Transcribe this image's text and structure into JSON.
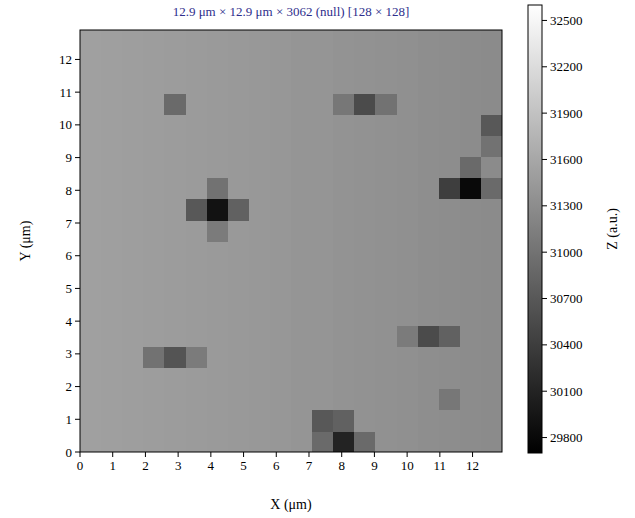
{
  "chart_data": {
    "type": "heatmap",
    "title": "12.9 μm × 12.9 μm × 3062 (null) [128 × 128]",
    "x_label": "X (μm)",
    "y_label": "Y (μm)",
    "z_label": "Z (a.u.)",
    "xlim": [
      0,
      12.9
    ],
    "ylim": [
      0,
      12.9
    ],
    "xticks": [
      0,
      1,
      2,
      3,
      4,
      5,
      6,
      7,
      8,
      9,
      10,
      11,
      12
    ],
    "yticks": [
      0,
      1,
      2,
      3,
      4,
      5,
      6,
      7,
      8,
      9,
      10,
      11,
      12
    ],
    "zlim": [
      29700,
      32600
    ],
    "zticks": [
      29800,
      30100,
      30400,
      30700,
      31000,
      31300,
      31600,
      31900,
      32200,
      32500
    ],
    "cells": [
      [
        31520,
        31510,
        31500,
        31490,
        31475,
        31460,
        31450,
        31440,
        31430,
        31415,
        31400,
        30900,
        30100,
        30900,
        31350,
        31335,
        31320,
        31305,
        31290,
        31280
      ],
      [
        31520,
        31510,
        31500,
        31490,
        31475,
        31460,
        31450,
        31440,
        31430,
        31415,
        31400,
        30700,
        30800,
        31360,
        31350,
        31335,
        31320,
        31305,
        31290,
        31280
      ],
      [
        31520,
        31510,
        31500,
        31490,
        31475,
        31460,
        31450,
        31440,
        31430,
        31415,
        31400,
        31390,
        31375,
        31360,
        31350,
        31335,
        31320,
        31050,
        31290,
        31280
      ],
      [
        31520,
        31510,
        31500,
        31490,
        31475,
        31460,
        31450,
        31440,
        31430,
        31415,
        31400,
        31390,
        31375,
        31360,
        31350,
        31335,
        31320,
        31305,
        31290,
        31280
      ],
      [
        31520,
        31510,
        31500,
        31000,
        30650,
        31100,
        31450,
        31440,
        31430,
        31415,
        31400,
        31390,
        31375,
        31360,
        31350,
        31335,
        31320,
        31305,
        31290,
        31280
      ],
      [
        31520,
        31510,
        31500,
        31490,
        31475,
        31460,
        31450,
        31440,
        31430,
        31415,
        31400,
        31390,
        31375,
        31360,
        31350,
        31100,
        30550,
        30800,
        31290,
        31280
      ],
      [
        31520,
        31510,
        31500,
        31490,
        31475,
        31460,
        31450,
        31440,
        31430,
        31415,
        31400,
        31390,
        31375,
        31360,
        31350,
        31335,
        31320,
        31305,
        31290,
        31280
      ],
      [
        31520,
        31510,
        31500,
        31490,
        31475,
        31460,
        31450,
        31440,
        31430,
        31415,
        31400,
        31390,
        31375,
        31360,
        31350,
        31335,
        31320,
        31305,
        31290,
        31280
      ],
      [
        31520,
        31510,
        31500,
        31490,
        31475,
        31460,
        31450,
        31440,
        31430,
        31415,
        31400,
        31390,
        31375,
        31360,
        31350,
        31335,
        31320,
        31305,
        31290,
        31280
      ],
      [
        31520,
        31510,
        31500,
        31490,
        31475,
        31460,
        31450,
        31440,
        31430,
        31415,
        31400,
        31390,
        31375,
        31360,
        31350,
        31335,
        31320,
        31305,
        31290,
        31280
      ],
      [
        31520,
        31510,
        31500,
        31490,
        31475,
        31460,
        31100,
        31440,
        31430,
        31415,
        31400,
        31390,
        31375,
        31360,
        31350,
        31335,
        31320,
        31305,
        31290,
        31280
      ],
      [
        31520,
        31510,
        31500,
        31490,
        31475,
        30700,
        29900,
        30800,
        31430,
        31415,
        31400,
        31390,
        31375,
        31360,
        31350,
        31335,
        31320,
        31305,
        31290,
        31280
      ],
      [
        31520,
        31510,
        31500,
        31490,
        31475,
        31460,
        31000,
        31440,
        31430,
        31415,
        31400,
        31390,
        31375,
        31360,
        31350,
        31335,
        31320,
        30400,
        29800,
        30900
      ],
      [
        31520,
        31510,
        31500,
        31490,
        31475,
        31460,
        31450,
        31440,
        31430,
        31415,
        31400,
        31390,
        31375,
        31360,
        31350,
        31335,
        31320,
        31305,
        30900,
        31280
      ],
      [
        31520,
        31510,
        31500,
        31490,
        31475,
        31460,
        31450,
        31440,
        31430,
        31415,
        31400,
        31390,
        31375,
        31360,
        31350,
        31335,
        31320,
        31305,
        31290,
        31000
      ],
      [
        31520,
        31510,
        31500,
        31490,
        31475,
        31460,
        31450,
        31440,
        31430,
        31415,
        31400,
        31390,
        31375,
        31360,
        31350,
        31335,
        31320,
        31305,
        31290,
        30700
      ],
      [
        31520,
        31510,
        31500,
        31490,
        30900,
        31460,
        31450,
        31440,
        31430,
        31415,
        31400,
        31390,
        31050,
        30550,
        31000,
        31335,
        31320,
        31305,
        31290,
        31280
      ],
      [
        31520,
        31510,
        31500,
        31490,
        31475,
        31460,
        31450,
        31440,
        31430,
        31415,
        31400,
        31390,
        31375,
        31360,
        31350,
        31335,
        31320,
        31305,
        31290,
        31280
      ],
      [
        31520,
        31510,
        31500,
        31490,
        31475,
        31460,
        31450,
        31440,
        31430,
        31415,
        31400,
        31390,
        31375,
        31360,
        31350,
        31335,
        31320,
        31305,
        31290,
        31280
      ],
      [
        31520,
        31510,
        31500,
        31490,
        31475,
        31460,
        31450,
        31440,
        31430,
        31415,
        31400,
        31390,
        31375,
        31360,
        31350,
        31335,
        31320,
        31305,
        31290,
        31280
      ]
    ]
  }
}
